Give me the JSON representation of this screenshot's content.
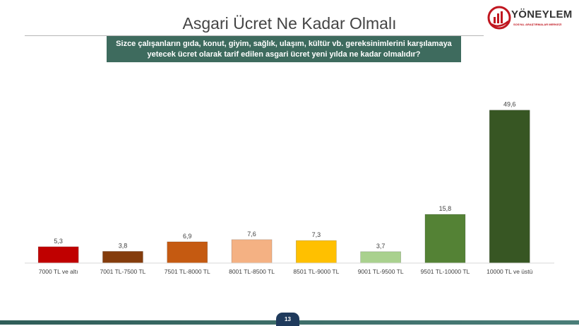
{
  "header": {
    "title": "Asgari Ücret Ne Kadar Olmalı"
  },
  "logo": {
    "name": "YÖNEYLEM",
    "subtitle": "SOSYAL ARAŞTIRMALAR MERKEZİ",
    "brand_color": "#c0161f"
  },
  "question": {
    "text": "Sizce çalışanların gıda, konut, giyim, sağlık, ulaşım, kültür vb. gereksinimlerini karşılamaya yetecek ücret olarak tarif edilen asgari ücret yeni yılda ne kadar olmalıdır?"
  },
  "chart_data": {
    "type": "bar",
    "categories": [
      "7000 TL ve altı",
      "7001 TL-7500 TL",
      "7501 TL-8000 TL",
      "8001 TL-8500 TL",
      "8501 TL-9000 TL",
      "9001 TL-9500 TL",
      "9501 TL-10000 TL",
      "10000 TL ve üstü"
    ],
    "values": [
      5.3,
      3.8,
      6.9,
      7.6,
      7.3,
      3.7,
      15.8,
      49.6
    ],
    "value_labels": [
      "5,3",
      "3,8",
      "6,9",
      "7,6",
      "7,3",
      "3,7",
      "15,8",
      "49,6"
    ],
    "colors": [
      "#c00000",
      "#843c0c",
      "#c55a11",
      "#f4b183",
      "#ffc000",
      "#a9d18e",
      "#548235",
      "#375623"
    ],
    "title": "",
    "xlabel": "",
    "ylabel": "",
    "ylim": [
      0,
      50
    ],
    "grid": false,
    "legend": "none"
  },
  "footer": {
    "page_number": "13"
  }
}
